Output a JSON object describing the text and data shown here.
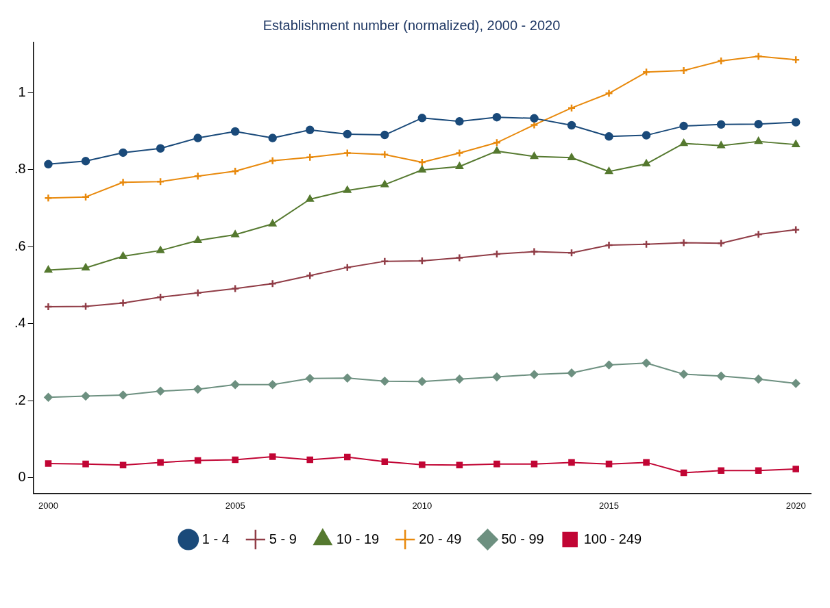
{
  "chart_data": {
    "type": "line",
    "title": "Establishment number (normalized), 2000 - 2020",
    "x": [
      2000,
      2001,
      2002,
      2003,
      2004,
      2005,
      2006,
      2007,
      2008,
      2009,
      2010,
      2011,
      2012,
      2013,
      2014,
      2015,
      2016,
      2017,
      2018,
      2019,
      2020
    ],
    "series": [
      {
        "name": "1 - 4",
        "color": "#1a4a7a",
        "marker": "circle",
        "values": [
          0.814,
          0.822,
          0.844,
          0.855,
          0.882,
          0.899,
          0.882,
          0.903,
          0.892,
          0.89,
          0.934,
          0.925,
          0.936,
          0.933,
          0.915,
          0.886,
          0.889,
          0.913,
          0.917,
          0.918,
          0.923
        ]
      },
      {
        "name": "5 - 9",
        "color": "#903c46",
        "marker": "cross",
        "values": [
          0.444,
          0.445,
          0.454,
          0.469,
          0.48,
          0.491,
          0.504,
          0.525,
          0.546,
          0.562,
          0.563,
          0.571,
          0.581,
          0.587,
          0.584,
          0.604,
          0.606,
          0.61,
          0.609,
          0.632,
          0.644
        ]
      },
      {
        "name": "10 - 19",
        "color": "#55792f",
        "marker": "triangle",
        "values": [
          0.539,
          0.545,
          0.575,
          0.59,
          0.616,
          0.631,
          0.659,
          0.723,
          0.746,
          0.761,
          0.799,
          0.808,
          0.848,
          0.834,
          0.831,
          0.795,
          0.815,
          0.868,
          0.862,
          0.873,
          0.865
        ]
      },
      {
        "name": "20 - 49",
        "color": "#e8890c",
        "marker": "cross",
        "values": [
          0.726,
          0.729,
          0.767,
          0.769,
          0.783,
          0.796,
          0.823,
          0.832,
          0.843,
          0.839,
          0.819,
          0.843,
          0.87,
          0.916,
          0.96,
          0.998,
          1.053,
          1.057,
          1.082,
          1.094,
          1.085
        ]
      },
      {
        "name": "50 - 99",
        "color": "#6d9080",
        "marker": "diamond",
        "values": [
          0.209,
          0.212,
          0.215,
          0.225,
          0.23,
          0.242,
          0.242,
          0.258,
          0.259,
          0.251,
          0.25,
          0.256,
          0.262,
          0.268,
          0.272,
          0.293,
          0.298,
          0.269,
          0.264,
          0.256,
          0.245
        ]
      },
      {
        "name": "100 - 249",
        "color": "#c10534",
        "marker": "square",
        "values": [
          0.037,
          0.036,
          0.033,
          0.04,
          0.045,
          0.047,
          0.055,
          0.047,
          0.054,
          0.042,
          0.034,
          0.033,
          0.036,
          0.036,
          0.04,
          0.036,
          0.04,
          0.013,
          0.019,
          0.019,
          0.023
        ]
      }
    ],
    "xlim": [
      1999.6,
      2020.4
    ],
    "ylim": [
      -0.04,
      1.13
    ],
    "xticks": [
      2000,
      2005,
      2010,
      2015,
      2020
    ],
    "yticks": [
      0,
      {
        "value": 0.2,
        "label": ".2"
      },
      {
        "value": 0.4,
        "label": ".4"
      },
      {
        "value": 0.6,
        "label": ".6"
      },
      {
        "value": 0.8,
        "label": ".8"
      },
      1
    ],
    "grid": false,
    "legend": "bottom",
    "line_style": "solid"
  }
}
